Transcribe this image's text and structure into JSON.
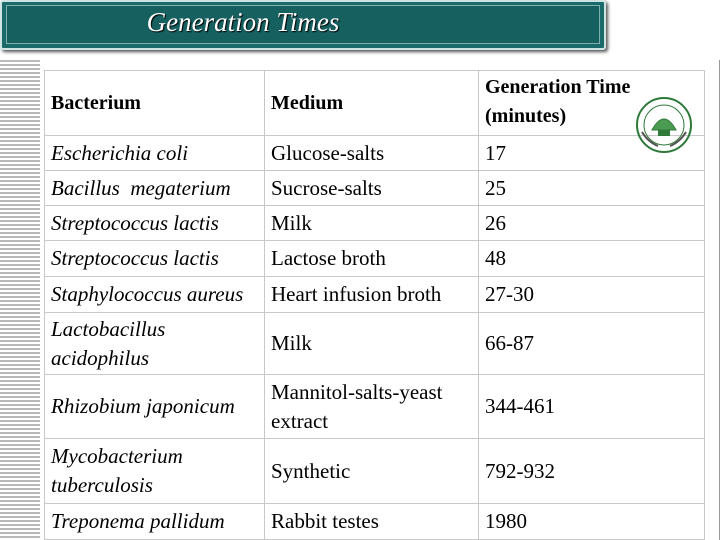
{
  "title": "Generation Times",
  "table": {
    "headers": [
      "Bacterium",
      "Medium",
      "Generation Time (minutes)"
    ],
    "rows": [
      {
        "bacterium": "Escherichia coli",
        "medium": "Glucose-salts",
        "time": "17"
      },
      {
        "bacterium": "Bacillus  megaterium",
        "medium": "Sucrose-salts",
        "time": "25"
      },
      {
        "bacterium": "Streptococcus lactis",
        "medium": "Milk",
        "time": "26"
      },
      {
        "bacterium": "Streptococcus lactis",
        "medium": "Lactose broth",
        "time": "48"
      },
      {
        "bacterium": "Staphylococcus aureus",
        "medium": "Heart infusion broth",
        "time": "27-30"
      },
      {
        "bacterium": "Lactobacillus acidophilus",
        "medium": "Milk",
        "time": "66-87"
      },
      {
        "bacterium": "Rhizobium japonicum",
        "medium": "Mannitol-salts-yeast extract",
        "time": "344-461"
      },
      {
        "bacterium": "Mycobacterium tuberculosis",
        "medium": "Synthetic",
        "time": "792-932"
      },
      {
        "bacterium": "Treponema pallidum",
        "medium": "Rabbit testes",
        "time": "1980"
      }
    ]
  },
  "colors": {
    "title_bar": "#1a6a6a",
    "title_text": "#ffffff",
    "grid": "#c8c8c8"
  }
}
